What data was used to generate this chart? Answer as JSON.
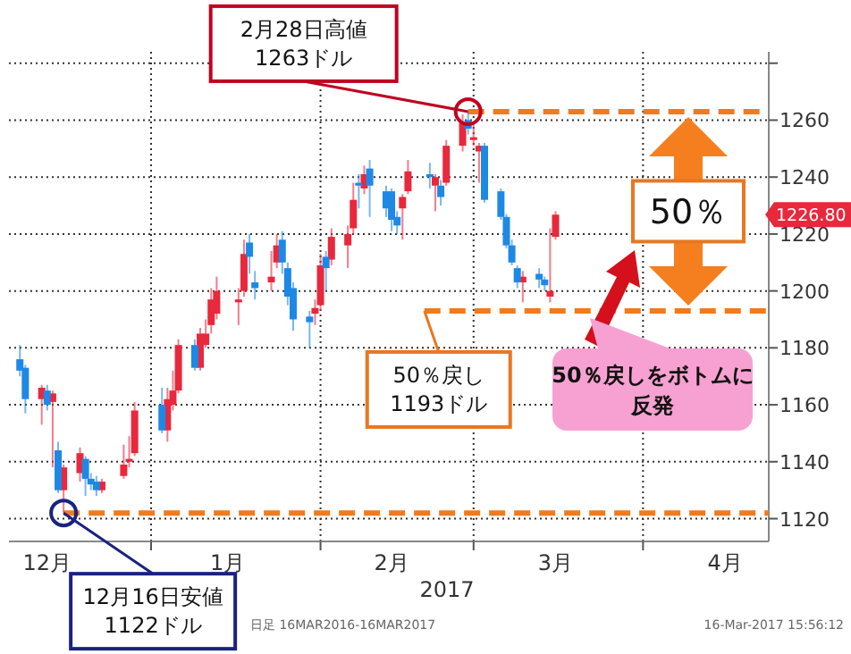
{
  "chart_data": {
    "type": "candlestick",
    "xlabel": "2017",
    "series": [
      {
        "color": "#e8283c",
        "x": [
          "2016-12-12",
          "2016-12-14",
          "2016-12-16",
          "2016-12-19",
          "2016-12-23",
          "2016-12-27",
          "2016-12-28",
          "2016-12-29",
          "2017-01-04",
          "2017-01-05",
          "2017-01-06",
          "2017-01-10",
          "2017-01-11",
          "2017-01-12",
          "2017-01-13",
          "2017-01-17",
          "2017-01-18",
          "2017-01-23",
          "2017-01-24",
          "2017-01-31",
          "2017-02-01",
          "2017-02-03",
          "2017-02-06",
          "2017-02-07",
          "2017-02-09",
          "2017-02-16",
          "2017-02-17",
          "2017-02-22",
          "2017-02-24",
          "2017-02-27",
          "2017-03-01",
          "2017-03-02",
          "2017-03-10",
          "2017-03-15",
          "2017-03-16"
        ],
        "ohlc": [
          [
            1162,
            1167,
            1153,
            1166
          ],
          [
            1161,
            1165,
            1138,
            1164
          ],
          [
            1130,
            1139,
            1122,
            1138
          ],
          [
            1136,
            1145,
            1133,
            1143
          ],
          [
            1130,
            1134,
            1129,
            1133
          ],
          [
            1135,
            1146,
            1134,
            1139
          ],
          [
            1140,
            1149,
            1138,
            1141
          ],
          [
            1143,
            1161,
            1142,
            1158
          ],
          [
            1151,
            1166,
            1147,
            1162
          ],
          [
            1160,
            1172,
            1158,
            1165
          ],
          [
            1165,
            1183,
            1164,
            1181
          ],
          [
            1173,
            1187,
            1172,
            1185
          ],
          [
            1181,
            1190,
            1180,
            1185
          ],
          [
            1188,
            1201,
            1185,
            1197
          ],
          [
            1192,
            1205,
            1190,
            1200
          ],
          [
            1196,
            1201,
            1188,
            1197
          ],
          [
            1200,
            1218,
            1198,
            1213
          ],
          [
            1203,
            1214,
            1200,
            1205
          ],
          [
            1210,
            1220,
            1208,
            1216
          ],
          [
            1192,
            1197,
            1188,
            1194
          ],
          [
            1195,
            1213,
            1193,
            1209
          ],
          [
            1211,
            1222,
            1209,
            1219
          ],
          [
            1216,
            1223,
            1208,
            1220
          ],
          [
            1222,
            1238,
            1220,
            1232
          ],
          [
            1236,
            1244,
            1234,
            1241
          ],
          [
            1229,
            1234,
            1218,
            1233
          ],
          [
            1235,
            1246,
            1234,
            1242
          ],
          [
            1237,
            1241,
            1228,
            1240
          ],
          [
            1238,
            1253,
            1237,
            1251
          ],
          [
            1251,
            1262,
            1249,
            1259
          ],
          [
            1253,
            1259,
            1251,
            1254
          ],
          [
            1249,
            1252,
            1238,
            1251
          ],
          [
            1203,
            1207,
            1196,
            1205
          ],
          [
            1198,
            1222,
            1196,
            1200
          ],
          [
            1219,
            1228,
            1218,
            1226.8
          ]
        ]
      },
      {
        "color": "#1e88e5",
        "x": [
          "2016-12-08",
          "2016-12-09",
          "2016-12-13",
          "2016-12-15",
          "2016-12-20",
          "2016-12-21",
          "2016-12-22",
          "2017-01-03",
          "2017-01-09",
          "2017-01-19",
          "2017-01-20",
          "2017-01-25",
          "2017-01-26",
          "2017-01-27",
          "2017-01-30",
          "2017-02-02",
          "2017-02-08",
          "2017-02-10",
          "2017-02-13",
          "2017-02-14",
          "2017-02-15",
          "2017-02-21",
          "2017-02-23",
          "2017-02-28",
          "2017-03-03",
          "2017-03-06",
          "2017-03-07",
          "2017-03-08",
          "2017-03-09",
          "2017-03-13",
          "2017-03-14"
        ],
        "ohlc": [
          [
            1176,
            1181,
            1170,
            1172
          ],
          [
            1173,
            1174,
            1157,
            1162
          ],
          [
            1165,
            1167,
            1158,
            1160
          ],
          [
            1144,
            1147,
            1129,
            1130
          ],
          [
            1141,
            1142,
            1128,
            1134
          ],
          [
            1134,
            1136,
            1130,
            1132
          ],
          [
            1133,
            1135,
            1128,
            1130
          ],
          [
            1160,
            1166,
            1150,
            1151
          ],
          [
            1181,
            1183,
            1172,
            1173
          ],
          [
            1217,
            1220,
            1206,
            1212
          ],
          [
            1203,
            1207,
            1197,
            1201
          ],
          [
            1218,
            1221,
            1206,
            1210
          ],
          [
            1208,
            1210,
            1195,
            1198
          ],
          [
            1201,
            1203,
            1186,
            1190
          ],
          [
            1191,
            1193,
            1180,
            1189
          ],
          [
            1212,
            1214,
            1200,
            1208
          ],
          [
            1238,
            1241,
            1229,
            1237
          ],
          [
            1243,
            1246,
            1226,
            1237
          ],
          [
            1235,
            1237,
            1226,
            1229
          ],
          [
            1235,
            1236,
            1221,
            1225
          ],
          [
            1226,
            1228,
            1220,
            1223
          ],
          [
            1241,
            1245,
            1236,
            1240
          ],
          [
            1237,
            1239,
            1230,
            1233
          ],
          [
            1260,
            1263,
            1255,
            1257
          ],
          [
            1251,
            1252,
            1231,
            1232
          ],
          [
            1235,
            1236,
            1225,
            1226
          ],
          [
            1226,
            1227,
            1215,
            1216
          ],
          [
            1216,
            1218,
            1209,
            1210
          ],
          [
            1208,
            1209,
            1201,
            1203
          ],
          [
            1206,
            1208,
            1201,
            1204
          ],
          [
            1204,
            1205,
            1200,
            1202
          ]
        ]
      }
    ],
    "xlim": [
      "2016-12-06",
      "2017-04-24"
    ],
    "xticks": [
      {
        "value": "2016-12-13",
        "label": "12月"
      },
      {
        "value": "2017-01-01",
        "label": null
      },
      {
        "value": "2017-01-15",
        "label": "1月"
      },
      {
        "value": "2017-02-01",
        "label": null
      },
      {
        "value": "2017-02-14",
        "label": "2月"
      },
      {
        "value": "2017-03-01",
        "label": null
      },
      {
        "value": "2017-03-16",
        "label": "3月"
      },
      {
        "value": "2017-04-01",
        "label": null
      },
      {
        "value": "2017-04-16",
        "label": "4月"
      }
    ],
    "ylim": [
      1112,
      1284
    ],
    "yticks": [
      1120,
      1140,
      1160,
      1180,
      1200,
      1220,
      1240,
      1260,
      {
        "value": 1280,
        "label": null
      }
    ],
    "grid": true,
    "ref_lines": [
      {
        "axis": "y",
        "value": 1263,
        "color": "#f07a1e",
        "line_style": "dashed"
      },
      {
        "axis": "y",
        "value": 1193,
        "color": "#f07a1e",
        "line_style": "dashed"
      },
      {
        "axis": "y",
        "value": 1122,
        "color": "#f07a1e",
        "line_style": "dashed"
      }
    ],
    "annotations": [
      {
        "text": "2月28日高値\n1263ドル",
        "x": "2017-02-28",
        "y": 1263
      },
      {
        "text": "12月16日安値\n1122ドル",
        "x": "2016-12-16",
        "y": 1122
      },
      {
        "text": "50％戻し\n1193ドル",
        "x": "2017-02-20",
        "y": 1193
      },
      "50％戻しをボトムに反発",
      "50％",
      "1226.80",
      "日足 16MAR2016-16MAR2017",
      "16-Mar-2017 15:56:12"
    ]
  }
}
